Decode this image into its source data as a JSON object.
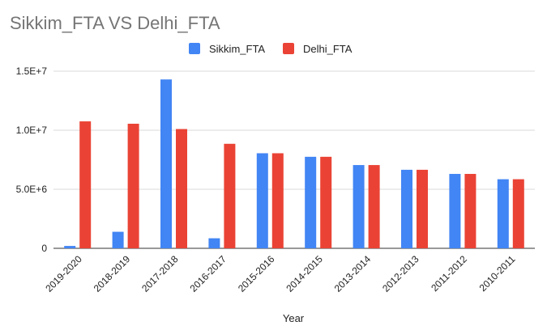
{
  "chart_data": {
    "type": "bar",
    "title": "Sikkim_FTA VS Delhi_FTA",
    "xlabel": "Year",
    "ylabel": "",
    "categories": [
      "2019-2020",
      "2018-2019",
      "2017-2018",
      "2016-2017",
      "2015-2016",
      "2014-2015",
      "2013-2014",
      "2012-2013",
      "2011-2012",
      "2010-2011"
    ],
    "series": [
      {
        "name": "Sikkim_FTA",
        "color": "#4285F4",
        "values": [
          200000,
          1400000,
          14300000,
          850000,
          8050000,
          7750000,
          7050000,
          6650000,
          6300000,
          5850000
        ]
      },
      {
        "name": "Delhi_FTA",
        "color": "#EA4335",
        "values": [
          10750000,
          10550000,
          10100000,
          8850000,
          8050000,
          7750000,
          7050000,
          6650000,
          6300000,
          5850000
        ]
      }
    ],
    "ylim": [
      0,
      15000000
    ],
    "yticks": [
      {
        "value": 0,
        "label": "0"
      },
      {
        "value": 5000000,
        "label": "5.0E+6"
      },
      {
        "value": 10000000,
        "label": "1.0E+7"
      },
      {
        "value": 15000000,
        "label": "1.5E+7"
      }
    ],
    "grid": true,
    "legend_position": "top-center"
  }
}
